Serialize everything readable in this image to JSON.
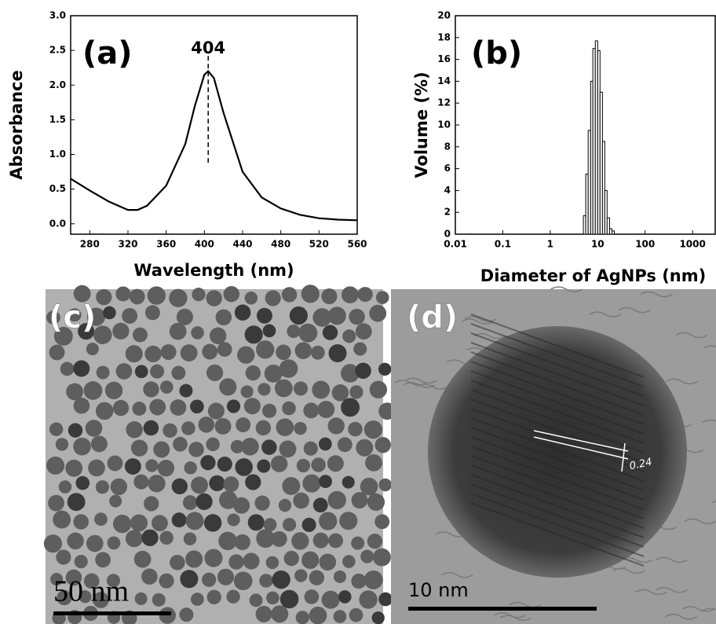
{
  "chart_data": [
    {
      "type": "line",
      "panel_label": "(a)",
      "peak": 404,
      "x_label": "Wavelength (nm)",
      "y_label": "Absorbance",
      "x": [
        260,
        280,
        300,
        320,
        330,
        340,
        360,
        380,
        390,
        400,
        404,
        410,
        420,
        440,
        460,
        480,
        500,
        520,
        540,
        560
      ],
      "values": [
        0.65,
        0.48,
        0.32,
        0.2,
        0.2,
        0.26,
        0.55,
        1.15,
        1.7,
        2.15,
        2.2,
        2.1,
        1.6,
        0.75,
        0.38,
        0.22,
        0.13,
        0.08,
        0.06,
        0.05
      ],
      "color": "#000000",
      "xlim": [
        260,
        560
      ],
      "xticks": [
        280,
        320,
        360,
        400,
        440,
        480,
        520,
        560
      ],
      "ylim": [
        -0.15,
        3.0
      ],
      "yticks": [
        {
          "value": 0,
          "label": "0.0"
        },
        0.5,
        {
          "value": 1,
          "label": "1.0"
        },
        1.5,
        {
          "value": 2,
          "label": "2.0"
        },
        2.5,
        {
          "value": 3,
          "label": "3.0"
        }
      ]
    },
    {
      "type": "histogram",
      "panel_label": "(b)",
      "x_label": "Diameter of AgNPs (nm)",
      "y_label": "Volume (%)",
      "bins": [
        5.0,
        5.6,
        6.3,
        7.1,
        7.9,
        8.9,
        10,
        11.2,
        12.6,
        14.1,
        15.8,
        17.8,
        20,
        22.4
      ],
      "counts": [
        1.7,
        5.5,
        9.5,
        14,
        17,
        17.7,
        16.8,
        13,
        8.5,
        4,
        1.5,
        0.5,
        0.3
      ],
      "color": "#ffffff",
      "x_log": true,
      "xlim": [
        0.01,
        3000
      ],
      "xticks": [
        0.01,
        0.1,
        1,
        10,
        100,
        1000
      ],
      "ylim": [
        0,
        20
      ],
      "yticks": [
        0,
        2,
        4,
        6,
        8,
        10,
        12,
        14,
        16,
        18,
        20
      ]
    }
  ],
  "images": [
    {
      "panel_label": "(c)",
      "scale_bar": "50 nm"
    },
    {
      "panel_label": "(d)",
      "scale_bar": "10 nm",
      "lattice_spacing": 0.24
    }
  ]
}
